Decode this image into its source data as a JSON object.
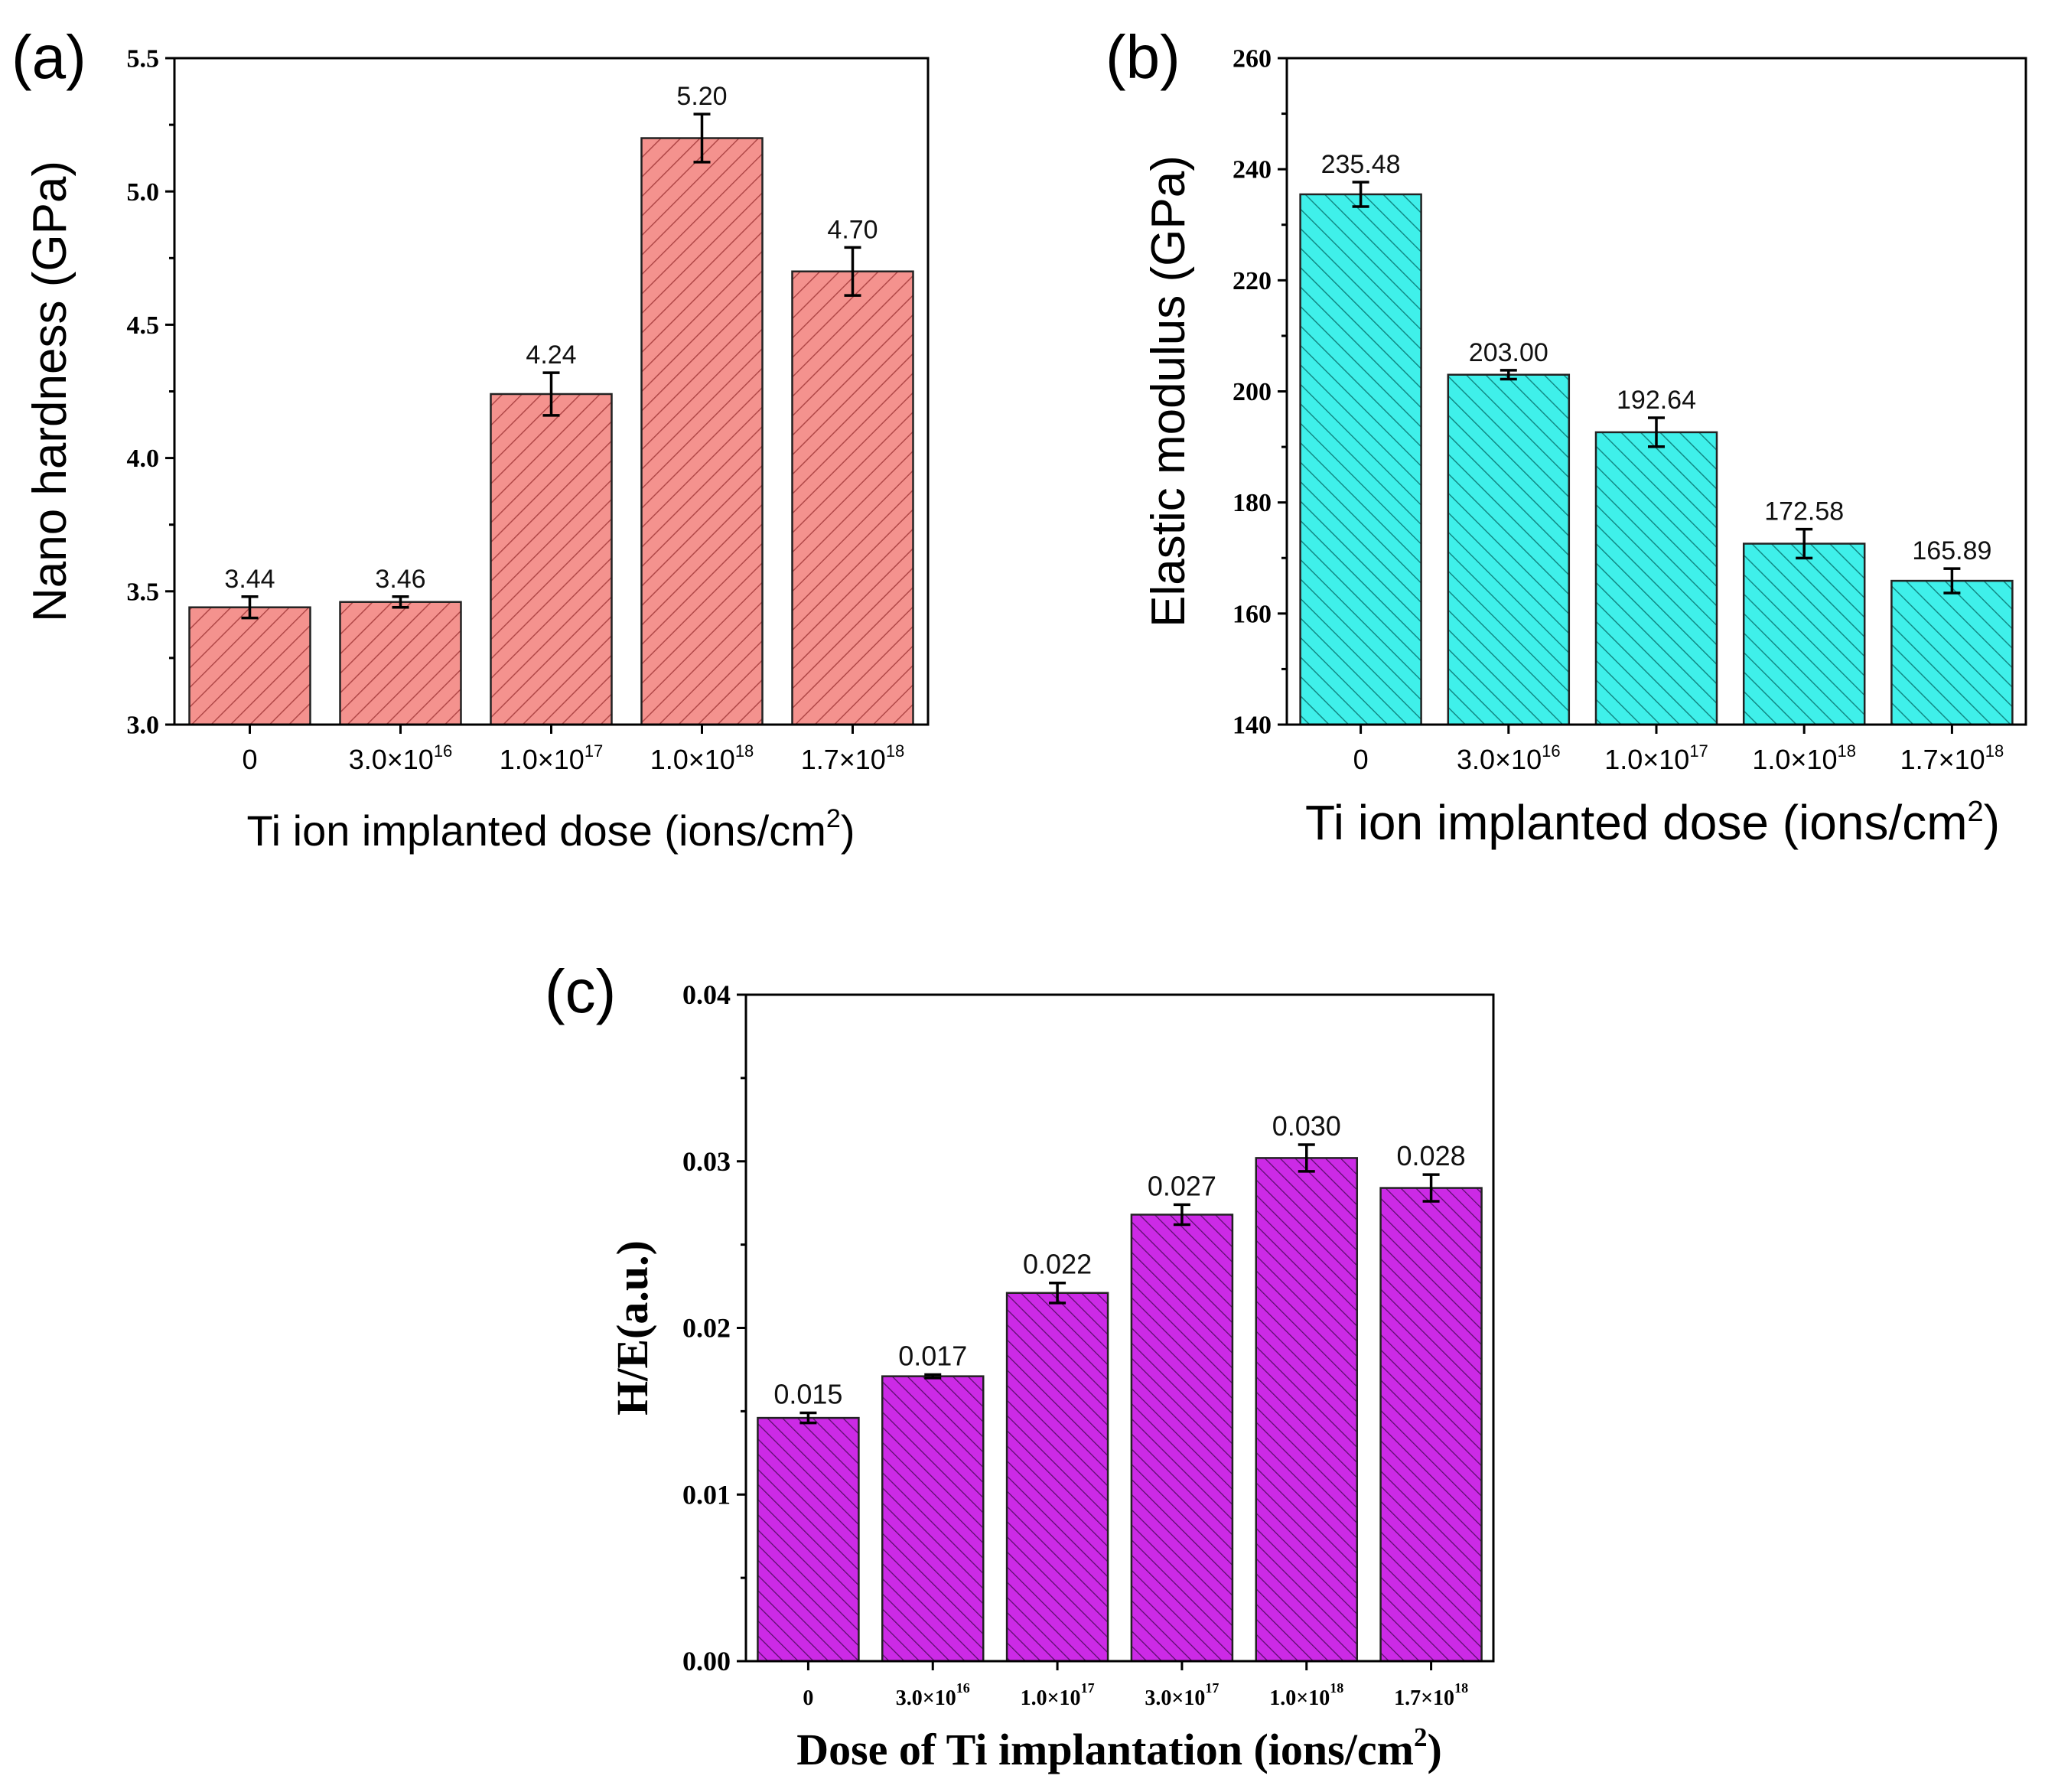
{
  "chart_data": [
    {
      "id": "a",
      "type": "bar",
      "panel_label": "(a)",
      "categories": [
        {
          "base": "0",
          "exp": ""
        },
        {
          "base": "3.0×10",
          "exp": "16"
        },
        {
          "base": "1.0×10",
          "exp": "17"
        },
        {
          "base": "1.0×10",
          "exp": "18"
        },
        {
          "base": "1.7×10",
          "exp": "18"
        }
      ],
      "values": [
        3.44,
        3.46,
        4.24,
        5.2,
        4.7
      ],
      "errors": [
        0.04,
        0.02,
        0.08,
        0.09,
        0.09
      ],
      "value_labels": [
        "3.44",
        "3.46",
        "4.24",
        "5.20",
        "4.70"
      ],
      "ylim": [
        3.0,
        5.5
      ],
      "yticks": [
        3.0,
        3.5,
        4.0,
        4.5,
        5.0,
        5.5
      ],
      "ytick_labels": [
        "3.0",
        "3.5",
        "4.0",
        "4.5",
        "5.0",
        "5.5"
      ],
      "xlabel": {
        "text": "Ti ion implanted dose (ions/cm",
        "sup": "2",
        "tail": ")"
      },
      "ylabel": "Nano hardness (GPa)",
      "bar_color": "#f4928e",
      "hatch_color": "#b14848"
    },
    {
      "id": "b",
      "type": "bar",
      "panel_label": "(b)",
      "categories": [
        {
          "base": "0",
          "exp": ""
        },
        {
          "base": "3.0×10",
          "exp": "16"
        },
        {
          "base": "1.0×10",
          "exp": "17"
        },
        {
          "base": "1.0×10",
          "exp": "18"
        },
        {
          "base": "1.7×10",
          "exp": "18"
        }
      ],
      "values": [
        235.48,
        203.0,
        192.64,
        172.58,
        165.89
      ],
      "errors": [
        2.2,
        0.8,
        2.6,
        2.6,
        2.2
      ],
      "value_labels": [
        "235.48",
        "203.00",
        "192.64",
        "172.58",
        "165.89"
      ],
      "ylim": [
        140,
        260
      ],
      "yticks": [
        140,
        160,
        180,
        200,
        220,
        240,
        260
      ],
      "ytick_labels": [
        "140",
        "160",
        "180",
        "200",
        "220",
        "240",
        "260"
      ],
      "xlabel": {
        "text": "Ti ion implanted dose (ions/cm",
        "sup": "2",
        "tail": ")"
      },
      "ylabel": "Elastic modulus (GPa)",
      "bar_color": "#3ff0ea",
      "hatch_color": "#138a86"
    },
    {
      "id": "c",
      "type": "bar",
      "panel_label": "(c)",
      "categories": [
        {
          "base": "0",
          "exp": ""
        },
        {
          "base": "3.0×10",
          "exp": "16"
        },
        {
          "base": "1.0×10",
          "exp": "17"
        },
        {
          "base": "3.0×10",
          "exp": "17"
        },
        {
          "base": "1.0×10",
          "exp": "18"
        },
        {
          "base": "1.7×10",
          "exp": "18"
        }
      ],
      "values": [
        0.0146,
        0.0171,
        0.0221,
        0.0268,
        0.0302,
        0.0284
      ],
      "errors": [
        0.0003,
        0.0001,
        0.0006,
        0.0006,
        0.0008,
        0.0008
      ],
      "value_labels": [
        "0.015",
        "0.017",
        "0.022",
        "0.027",
        "0.030",
        "0.028"
      ],
      "ylim": [
        0.0,
        0.04
      ],
      "yticks": [
        0.0,
        0.01,
        0.02,
        0.03,
        0.04
      ],
      "ytick_labels": [
        "0.00",
        "0.01",
        "0.02",
        "0.03",
        "0.04"
      ],
      "xlabel": {
        "text": "Dose of Ti implantation (ions/cm",
        "sup": "2",
        "tail": ")"
      },
      "ylabel": "H/E(a.u.)",
      "bar_color": "#cc2ae6",
      "hatch_color": "#5c0f6e"
    }
  ]
}
